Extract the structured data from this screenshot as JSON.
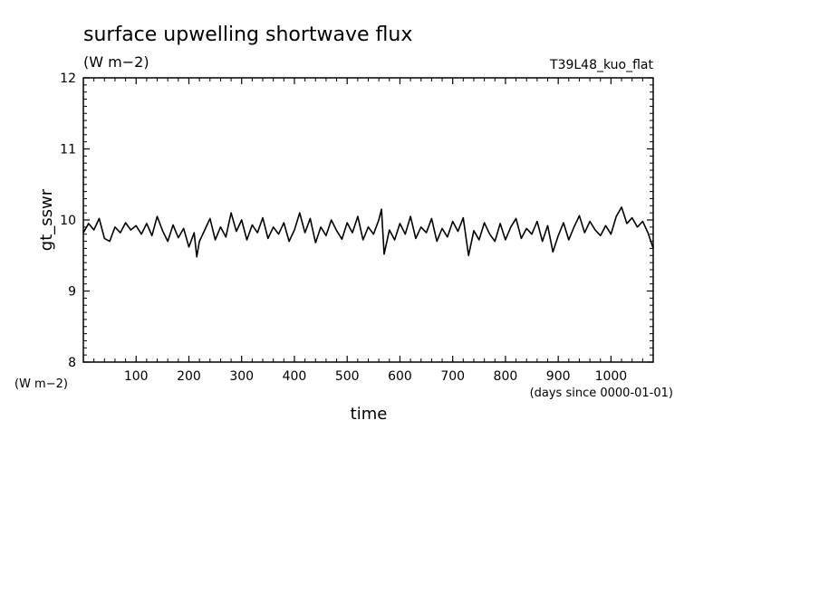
{
  "chart_data": {
    "type": "line",
    "title": "surface upwelling shortwave flux",
    "subtitle": "(W m−2)",
    "run_label": "T39L48_kuo_flat",
    "xlabel": "time",
    "x_units": "(days since 0000-01-01)",
    "ylabel": "gt_sswr",
    "y_units": "(W m−2)",
    "xlim": [
      0,
      1080
    ],
    "ylim": [
      8,
      12
    ],
    "x_ticks": [
      100,
      200,
      300,
      400,
      500,
      600,
      700,
      800,
      900,
      1000
    ],
    "y_ticks": [
      8,
      9,
      10,
      11,
      12
    ],
    "line_color": "#000000",
    "grid": false,
    "series": [
      {
        "x": [
          0,
          10,
          20,
          30,
          40,
          50,
          60,
          70,
          80,
          90,
          100,
          110,
          120,
          130,
          140,
          150,
          160,
          170,
          180,
          190,
          200,
          210,
          215,
          220,
          230,
          240,
          250,
          260,
          270,
          280,
          290,
          300,
          310,
          320,
          330,
          340,
          350,
          360,
          370,
          380,
          390,
          400,
          410,
          420,
          430,
          440,
          450,
          460,
          470,
          480,
          490,
          500,
          510,
          520,
          530,
          540,
          550,
          560,
          565,
          570,
          580,
          590,
          600,
          610,
          620,
          630,
          640,
          650,
          660,
          670,
          680,
          690,
          700,
          710,
          720,
          730,
          740,
          750,
          760,
          770,
          780,
          790,
          800,
          810,
          820,
          830,
          840,
          850,
          860,
          870,
          880,
          890,
          900,
          910,
          920,
          930,
          940,
          950,
          960,
          970,
          980,
          990,
          1000,
          1010,
          1020,
          1030,
          1040,
          1050,
          1060,
          1070,
          1080
        ],
        "values": [
          9.82,
          9.95,
          9.86,
          10.02,
          9.74,
          9.7,
          9.9,
          9.82,
          9.96,
          9.86,
          9.92,
          9.8,
          9.95,
          9.78,
          10.05,
          9.85,
          9.7,
          9.93,
          9.75,
          9.88,
          9.62,
          9.82,
          9.48,
          9.7,
          9.86,
          10.02,
          9.72,
          9.9,
          9.76,
          10.1,
          9.84,
          10.0,
          9.72,
          9.93,
          9.82,
          10.03,
          9.74,
          9.9,
          9.8,
          9.96,
          9.7,
          9.86,
          10.1,
          9.82,
          10.02,
          9.68,
          9.9,
          9.78,
          10.0,
          9.85,
          9.73,
          9.96,
          9.82,
          10.05,
          9.72,
          9.9,
          9.8,
          10.0,
          10.15,
          9.52,
          9.86,
          9.72,
          9.95,
          9.8,
          10.05,
          9.74,
          9.9,
          9.82,
          10.02,
          9.7,
          9.88,
          9.76,
          9.98,
          9.84,
          10.03,
          9.5,
          9.85,
          9.72,
          9.96,
          9.8,
          9.7,
          9.95,
          9.72,
          9.9,
          10.02,
          9.74,
          9.88,
          9.8,
          9.98,
          9.7,
          9.92,
          9.55,
          9.78,
          9.96,
          9.72,
          9.9,
          10.06,
          9.82,
          9.98,
          9.86,
          9.78,
          9.92,
          9.8,
          10.05,
          10.18,
          9.95,
          10.03,
          9.9,
          9.98,
          9.82,
          9.6
        ]
      }
    ]
  }
}
